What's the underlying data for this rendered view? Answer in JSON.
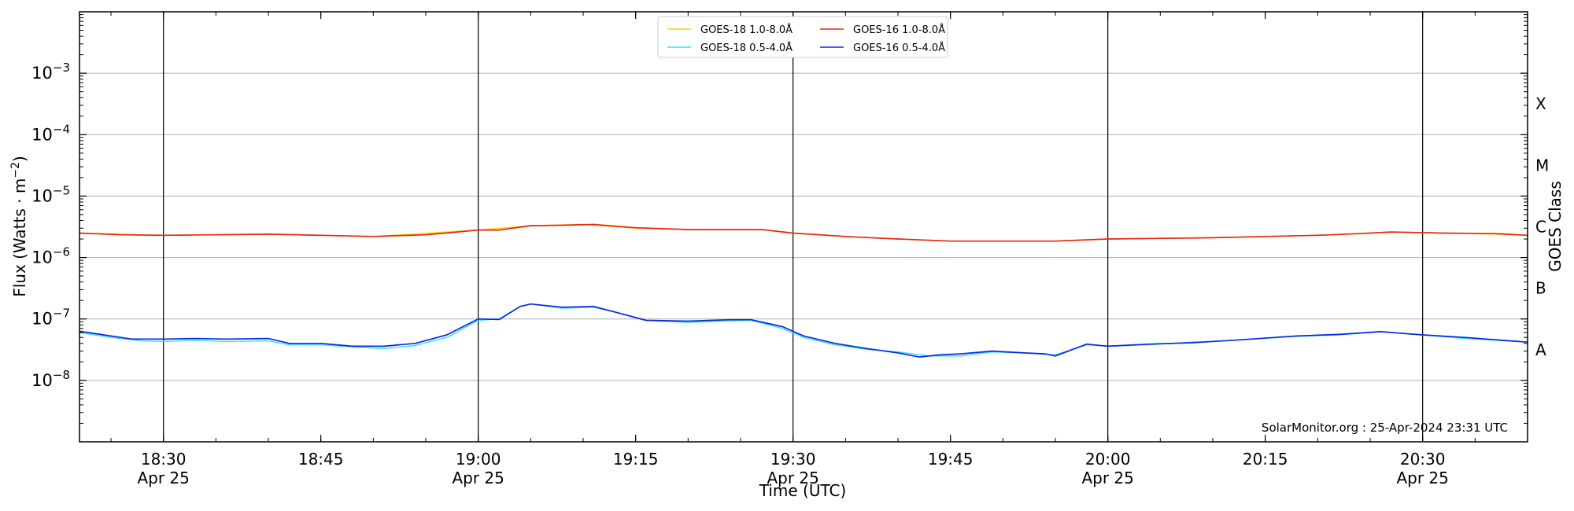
{
  "chart_data": {
    "type": "line",
    "x_range": [
      "18:22",
      "20:40"
    ],
    "y_scale": "log",
    "y_range": [
      1e-09,
      0.01
    ],
    "xlabel": "Time (UTC)",
    "ylabel_main": "Flux (Watts · m",
    "ylabel_sup": "−2",
    "ylabel_close": ")",
    "right_label": "GOES Class",
    "grid": "horizontal at decades 1e-8 to 1e-3, vertical lines every 30 min",
    "x_ticks": [
      {
        "time": "18:30",
        "label": "18:30",
        "sublabel": "Apr 25",
        "major": true
      },
      {
        "time": "18:45",
        "label": "18:45",
        "sublabel": "",
        "major": false
      },
      {
        "time": "19:00",
        "label": "19:00",
        "sublabel": "Apr 25",
        "major": true
      },
      {
        "time": "19:15",
        "label": "19:15",
        "sublabel": "",
        "major": false
      },
      {
        "time": "19:30",
        "label": "19:30",
        "sublabel": "Apr 25",
        "major": true
      },
      {
        "time": "19:45",
        "label": "19:45",
        "sublabel": "",
        "major": false
      },
      {
        "time": "20:00",
        "label": "20:00",
        "sublabel": "Apr 25",
        "major": true
      },
      {
        "time": "20:15",
        "label": "20:15",
        "sublabel": "",
        "major": false
      },
      {
        "time": "20:30",
        "label": "20:30",
        "sublabel": "Apr 25",
        "major": true
      }
    ],
    "y_ticks": [
      {
        "value": 1e-08,
        "mant": "10",
        "exp": "−8"
      },
      {
        "value": 1e-07,
        "mant": "10",
        "exp": "−7"
      },
      {
        "value": 1e-06,
        "mant": "10",
        "exp": "−6"
      },
      {
        "value": 1e-05,
        "mant": "10",
        "exp": "−5"
      },
      {
        "value": 0.0001,
        "mant": "10",
        "exp": "−4"
      },
      {
        "value": 0.001,
        "mant": "10",
        "exp": "−3"
      }
    ],
    "classes": [
      {
        "label": "A",
        "value": 3.162e-08
      },
      {
        "label": "B",
        "value": 3.162e-07
      },
      {
        "label": "C",
        "value": 3.162e-06
      },
      {
        "label": "M",
        "value": 3.162e-05
      },
      {
        "label": "X",
        "value": 0.0003162
      }
    ],
    "legend_position": "top-center",
    "series": [
      {
        "name": "GOES-18 1.0-8.0Å",
        "color": "#ffd700",
        "points": [
          [
            "18:22",
            2.5e-06
          ],
          [
            "18:30",
            2.3e-06
          ],
          [
            "18:40",
            2.4e-06
          ],
          [
            "18:50",
            2.2e-06
          ],
          [
            "19:00",
            2.8e-06
          ],
          [
            "19:05",
            3.3e-06
          ],
          [
            "19:10",
            3.45e-06
          ],
          [
            "19:15",
            3e-06
          ],
          [
            "19:20",
            2.85e-06
          ],
          [
            "19:27",
            2.85e-06
          ],
          [
            "19:30",
            2.5e-06
          ],
          [
            "19:35",
            2.2e-06
          ],
          [
            "19:40",
            2e-06
          ],
          [
            "19:45",
            1.85e-06
          ],
          [
            "19:55",
            1.85e-06
          ],
          [
            "20:00",
            2e-06
          ],
          [
            "20:10",
            2.1e-06
          ],
          [
            "20:20",
            2.3e-06
          ],
          [
            "20:27",
            2.6e-06
          ],
          [
            "20:35",
            2.45e-06
          ],
          [
            "20:40",
            2.3e-06
          ]
        ]
      },
      {
        "name": "GOES-16 1.0-8.0Å",
        "color": "#e8260f",
        "points": [
          [
            "18:22",
            2.5e-06
          ],
          [
            "18:26",
            2.35e-06
          ],
          [
            "18:30",
            2.3e-06
          ],
          [
            "18:35",
            2.35e-06
          ],
          [
            "18:40",
            2.4e-06
          ],
          [
            "18:45",
            2.3e-06
          ],
          [
            "18:50",
            2.2e-06
          ],
          [
            "18:55",
            2.35e-06
          ],
          [
            "18:58",
            2.6e-06
          ],
          [
            "19:00",
            2.8e-06
          ],
          [
            "19:02",
            2.8e-06
          ],
          [
            "19:05",
            3.3e-06
          ],
          [
            "19:08",
            3.35e-06
          ],
          [
            "19:11",
            3.45e-06
          ],
          [
            "19:15",
            3.05e-06
          ],
          [
            "19:20",
            2.85e-06
          ],
          [
            "19:27",
            2.85e-06
          ],
          [
            "19:30",
            2.5e-06
          ],
          [
            "19:35",
            2.2e-06
          ],
          [
            "19:40",
            2e-06
          ],
          [
            "19:45",
            1.85e-06
          ],
          [
            "19:50",
            1.85e-06
          ],
          [
            "19:55",
            1.85e-06
          ],
          [
            "20:00",
            2e-06
          ],
          [
            "20:05",
            2.05e-06
          ],
          [
            "20:10",
            2.1e-06
          ],
          [
            "20:15",
            2.2e-06
          ],
          [
            "20:20",
            2.3e-06
          ],
          [
            "20:24",
            2.45e-06
          ],
          [
            "20:27",
            2.6e-06
          ],
          [
            "20:32",
            2.5e-06
          ],
          [
            "20:37",
            2.45e-06
          ],
          [
            "20:40",
            2.3e-06
          ]
        ]
      },
      {
        "name": "GOES-18 0.5-4.0Å",
        "color": "#33e0ff",
        "points": [
          [
            "18:22",
            6e-08
          ],
          [
            "18:25",
            5e-08
          ],
          [
            "18:28",
            4.4e-08
          ],
          [
            "18:30",
            4.3e-08
          ],
          [
            "18:33",
            4.5e-08
          ],
          [
            "18:36",
            4.3e-08
          ],
          [
            "18:40",
            4.4e-08
          ],
          [
            "18:42",
            3.8e-08
          ],
          [
            "18:45",
            3.8e-08
          ],
          [
            "18:48",
            3.5e-08
          ],
          [
            "18:51",
            3.3e-08
          ],
          [
            "18:54",
            3.7e-08
          ],
          [
            "18:57",
            5e-08
          ],
          [
            "19:00",
            9.5e-08
          ],
          [
            "19:02",
            1e-07
          ],
          [
            "19:04",
            1.6e-07
          ],
          [
            "19:05",
            1.75e-07
          ],
          [
            "19:08",
            1.5e-07
          ],
          [
            "19:11",
            1.55e-07
          ],
          [
            "19:13",
            1.3e-07
          ],
          [
            "19:16",
            9.5e-08
          ],
          [
            "19:20",
            8.8e-08
          ],
          [
            "19:24",
            9.3e-08
          ],
          [
            "19:26",
            9.5e-08
          ],
          [
            "19:29",
            7e-08
          ],
          [
            "19:31",
            5e-08
          ],
          [
            "19:34",
            3.8e-08
          ],
          [
            "19:37",
            3.2e-08
          ],
          [
            "19:40",
            2.9e-08
          ],
          [
            "19:43",
            2.5e-08
          ],
          [
            "19:46",
            2.5e-08
          ],
          [
            "19:49",
            2.9e-08
          ],
          [
            "19:52",
            2.8e-08
          ],
          [
            "19:55",
            2.6e-08
          ],
          [
            "19:58",
            3.8e-08
          ],
          [
            "20:00",
            3.6e-08
          ],
          [
            "20:04",
            3.8e-08
          ],
          [
            "20:08",
            4.2e-08
          ],
          [
            "20:12",
            4.5e-08
          ],
          [
            "20:18",
            5.2e-08
          ],
          [
            "20:22",
            5.5e-08
          ],
          [
            "20:26",
            6.2e-08
          ],
          [
            "20:30",
            5.5e-08
          ],
          [
            "20:34",
            4.8e-08
          ],
          [
            "20:40",
            4.2e-08
          ]
        ]
      },
      {
        "name": "GOES-16 0.5-4.0Å",
        "color": "#0a28e0",
        "points": [
          [
            "18:22",
            6.3e-08
          ],
          [
            "18:24",
            5.6e-08
          ],
          [
            "18:27",
            4.7e-08
          ],
          [
            "18:30",
            4.7e-08
          ],
          [
            "18:33",
            4.8e-08
          ],
          [
            "18:36",
            4.7e-08
          ],
          [
            "18:40",
            4.8e-08
          ],
          [
            "18:42",
            4e-08
          ],
          [
            "18:45",
            4e-08
          ],
          [
            "18:48",
            3.6e-08
          ],
          [
            "18:51",
            3.6e-08
          ],
          [
            "18:54",
            4e-08
          ],
          [
            "18:57",
            5.5e-08
          ],
          [
            "19:00",
            1e-07
          ],
          [
            "19:02",
            9.8e-08
          ],
          [
            "19:04",
            1.6e-07
          ],
          [
            "19:05",
            1.75e-07
          ],
          [
            "19:08",
            1.55e-07
          ],
          [
            "19:11",
            1.6e-07
          ],
          [
            "19:13",
            1.3e-07
          ],
          [
            "19:16",
            9.5e-08
          ],
          [
            "19:20",
            9.2e-08
          ],
          [
            "19:24",
            9.7e-08
          ],
          [
            "19:26",
            9.7e-08
          ],
          [
            "19:29",
            7.5e-08
          ],
          [
            "19:31",
            5.3e-08
          ],
          [
            "19:34",
            4e-08
          ],
          [
            "19:37",
            3.3e-08
          ],
          [
            "19:40",
            2.8e-08
          ],
          [
            "19:42",
            2.4e-08
          ],
          [
            "19:44",
            2.6e-08
          ],
          [
            "19:46",
            2.7e-08
          ],
          [
            "19:49",
            3e-08
          ],
          [
            "19:52",
            2.8e-08
          ],
          [
            "19:54",
            2.7e-08
          ],
          [
            "19:55",
            2.5e-08
          ],
          [
            "19:58",
            3.9e-08
          ],
          [
            "20:00",
            3.6e-08
          ],
          [
            "20:04",
            3.9e-08
          ],
          [
            "20:08",
            4.1e-08
          ],
          [
            "20:12",
            4.5e-08
          ],
          [
            "20:18",
            5.3e-08
          ],
          [
            "20:22",
            5.6e-08
          ],
          [
            "20:26",
            6.2e-08
          ],
          [
            "20:30",
            5.5e-08
          ],
          [
            "20:34",
            5e-08
          ],
          [
            "20:40",
            4.2e-08
          ]
        ]
      }
    ],
    "legend_order": [
      0,
      2,
      1,
      3
    ],
    "watermark": "SolarMonitor.org : 25-Apr-2024 23:31 UTC"
  }
}
